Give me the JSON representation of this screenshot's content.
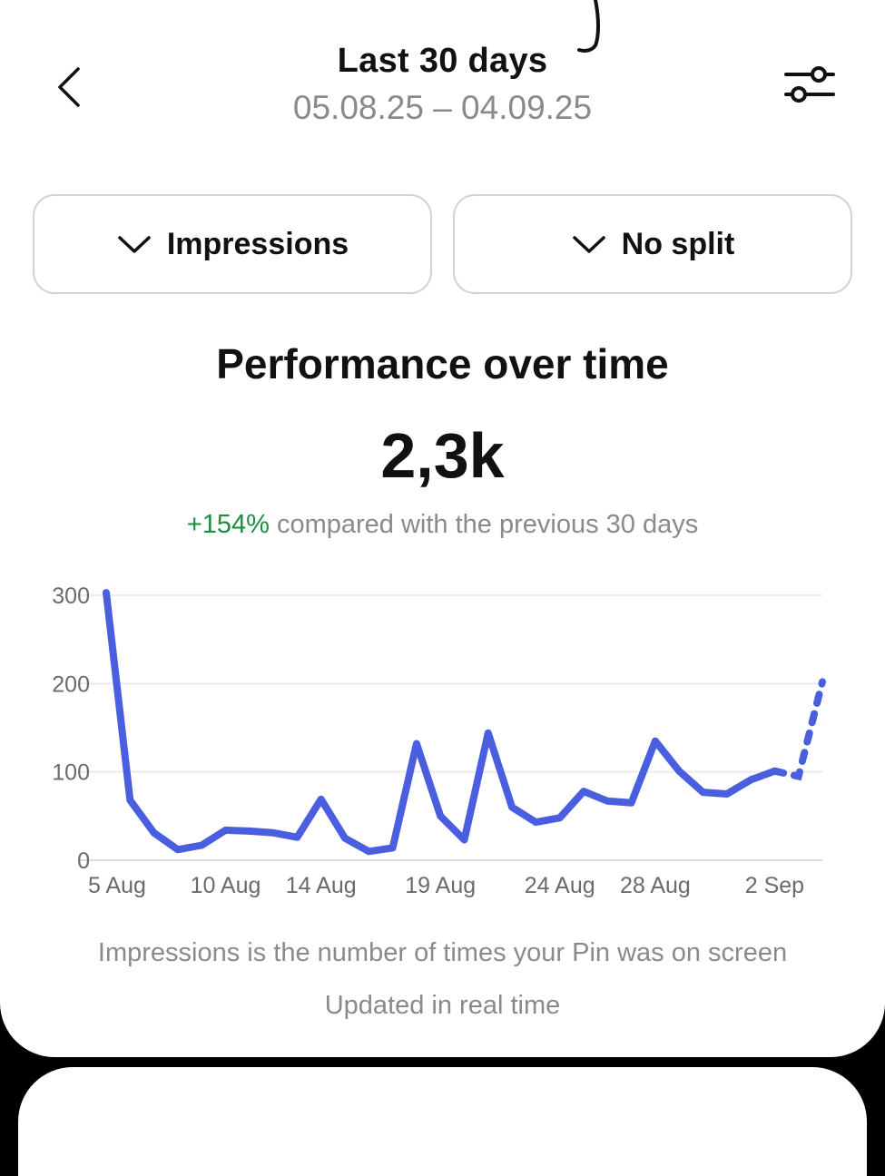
{
  "header": {
    "title": "Last 30 days",
    "date_range": "05.08.25 – 04.09.25"
  },
  "dropdowns": {
    "metric_label": "Impressions",
    "split_label": "No split"
  },
  "summary": {
    "section_title": "Performance over time",
    "total_value": "2,3k",
    "change_percent": "+154%",
    "change_text": " compared with the previous 30 days"
  },
  "colors": {
    "line": "#4a5fe0",
    "positive": "#1a8f3c",
    "muted_text": "#8a8a8a"
  },
  "icons": {
    "back": "chevron-left-icon",
    "filter": "sliders-icon",
    "dropdown": "chevron-down-icon"
  },
  "chart_data": {
    "type": "line",
    "x": [
      "5 Aug",
      "6 Aug",
      "7 Aug",
      "8 Aug",
      "9 Aug",
      "10 Aug",
      "11 Aug",
      "12 Aug",
      "13 Aug",
      "14 Aug",
      "15 Aug",
      "16 Aug",
      "17 Aug",
      "18 Aug",
      "19 Aug",
      "20 Aug",
      "21 Aug",
      "22 Aug",
      "23 Aug",
      "24 Aug",
      "25 Aug",
      "26 Aug",
      "27 Aug",
      "28 Aug",
      "29 Aug",
      "30 Aug",
      "31 Aug",
      "1 Sep",
      "2 Sep",
      "3 Sep",
      "4 Sep"
    ],
    "series": [
      {
        "values": [
          303,
          68,
          31,
          12,
          17,
          34,
          33,
          31,
          26,
          69,
          25,
          10,
          14,
          132,
          50,
          23,
          144,
          60,
          43,
          48,
          78,
          67,
          65,
          135,
          101,
          77,
          75,
          91,
          101,
          95,
          202
        ],
        "dashed_from_index": 28
      }
    ],
    "x_tick_labels": [
      "5 Aug",
      "10 Aug",
      "14 Aug",
      "19 Aug",
      "24 Aug",
      "28 Aug",
      "2 Sep"
    ],
    "y_ticks": [
      0,
      100,
      200,
      300
    ],
    "y_tick_labels": [
      "0",
      "100",
      "200",
      "300"
    ],
    "ylim": [
      0,
      300
    ],
    "grid": true
  },
  "footer": {
    "note": "Impressions is the number of times your Pin was on screen",
    "update_note": "Updated in real time"
  }
}
